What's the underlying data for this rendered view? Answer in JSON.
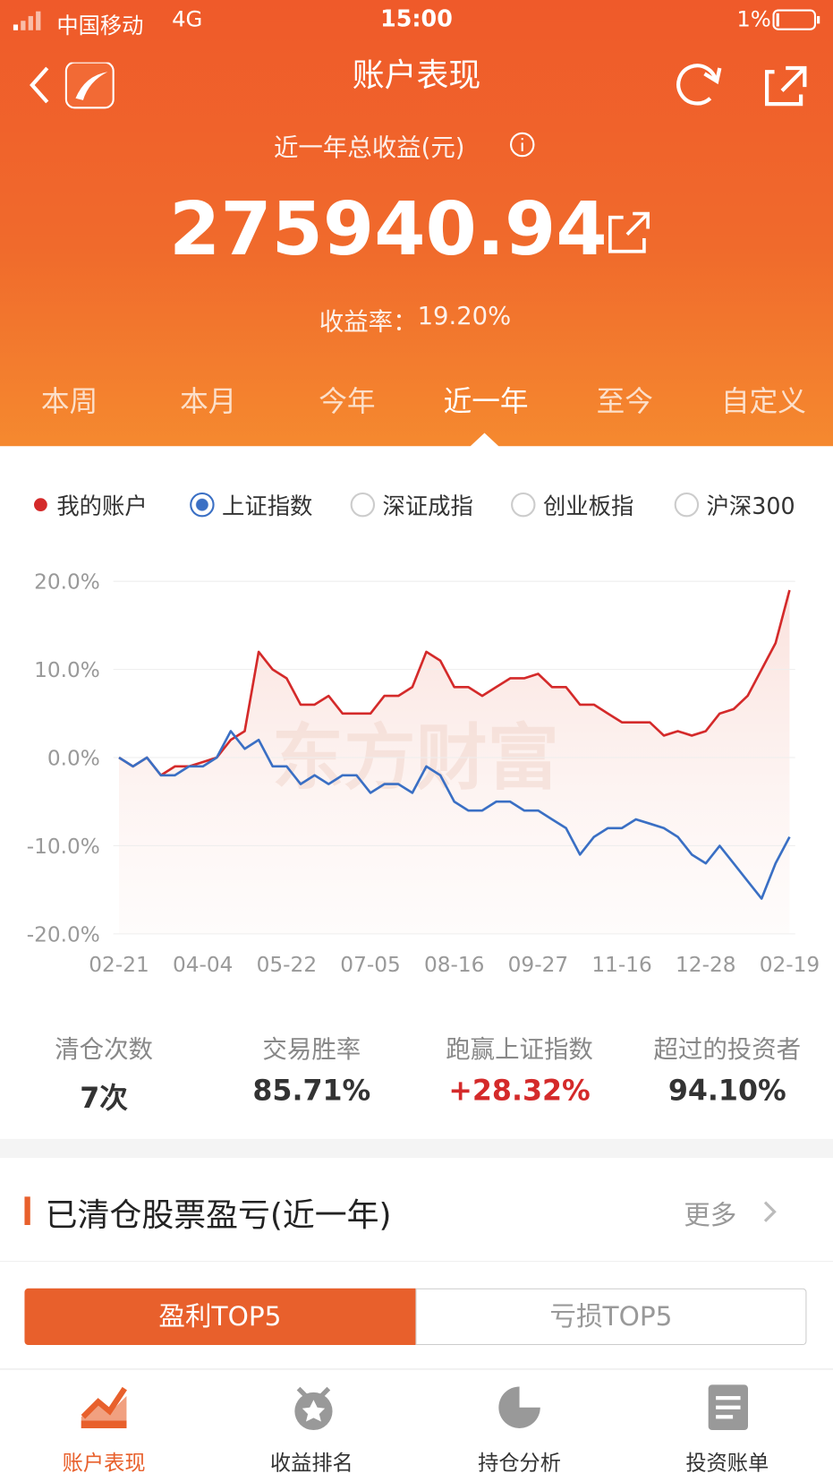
{
  "status_bar": {
    "carrier": "中国移动",
    "network": "4G",
    "time": "15:00",
    "battery": "1%"
  },
  "header": {
    "title": "账户表现",
    "subtitle": "近一年总收益(元)",
    "amount": "275940.94",
    "return_label": "收益率：",
    "return_value": "19.20%"
  },
  "period_tabs": [
    "本周",
    "本月",
    "今年",
    "近一年",
    "至今",
    "自定义"
  ],
  "index_options": [
    "深证成指",
    "创业板指",
    "沪深300"
  ],
  "chart_data": {
    "type": "line",
    "watermark": "东方财富",
    "categories": [
      "02-21",
      null,
      null,
      null,
      null,
      null,
      "04-04",
      null,
      null,
      null,
      null,
      null,
      "05-22",
      null,
      null,
      null,
      null,
      null,
      "07-05",
      null,
      null,
      null,
      null,
      null,
      "08-16",
      null,
      null,
      null,
      null,
      null,
      "09-27",
      null,
      null,
      null,
      null,
      null,
      "11-16",
      null,
      null,
      null,
      null,
      null,
      "12-28",
      null,
      null,
      null,
      null,
      null,
      "02-19"
    ],
    "series": [
      {
        "name": "我的账户",
        "color": "#d42a2a",
        "values": [
          0,
          -1,
          0,
          -2,
          -1,
          -1,
          -0.5,
          0,
          2,
          3,
          12,
          10,
          9,
          6,
          6,
          7,
          5,
          5,
          5,
          7,
          7,
          8,
          12,
          11,
          8,
          8,
          7,
          8,
          9,
          9,
          9.5,
          8,
          8,
          6,
          6,
          5,
          4,
          4,
          4,
          2.5,
          3,
          2.5,
          3,
          5,
          5.5,
          7,
          10,
          13,
          19
        ]
      },
      {
        "name": "上证指数",
        "color": "#3a6fc4",
        "values": [
          0,
          -1,
          0,
          -2,
          -2,
          -1,
          -1,
          0,
          3,
          1,
          2,
          -1,
          -1,
          -3,
          -2,
          -3,
          -2,
          -2,
          -4,
          -3,
          -3,
          -4,
          -1,
          -2,
          -5,
          -6,
          -6,
          -5,
          -5,
          -6,
          -6,
          -7,
          -8,
          -11,
          -9,
          -8,
          -8,
          -7,
          -7.5,
          -8,
          -9,
          -11,
          -12,
          -10,
          -12,
          -14,
          -16,
          -12,
          -9
        ]
      }
    ],
    "ylim": [
      -20,
      20
    ],
    "yticks": [
      {
        "value": 20,
        "label": "20.0%"
      },
      {
        "value": 10,
        "label": "10.0%"
      },
      {
        "value": 0,
        "label": "0.0%"
      },
      {
        "value": -10,
        "label": "-10.0%"
      },
      {
        "value": -20,
        "label": "-20.0%"
      }
    ],
    "grid": true
  },
  "stats": [
    {
      "label": "清仓次数",
      "value": "7次"
    },
    {
      "label": "交易胜率",
      "value": "85.71%"
    },
    {
      "label": "跑赢上证指数",
      "value": "+28.32%"
    },
    {
      "label": "超过的投资者",
      "value": "94.10%"
    }
  ],
  "section": {
    "title": "已清仓股票盈亏(近一年)",
    "more": "更多"
  },
  "toggle": [
    "盈利TOP5",
    "亏损TOP5"
  ],
  "bottom_nav": [
    "账户表现",
    "收益排名",
    "持仓分析",
    "投资账单"
  ]
}
